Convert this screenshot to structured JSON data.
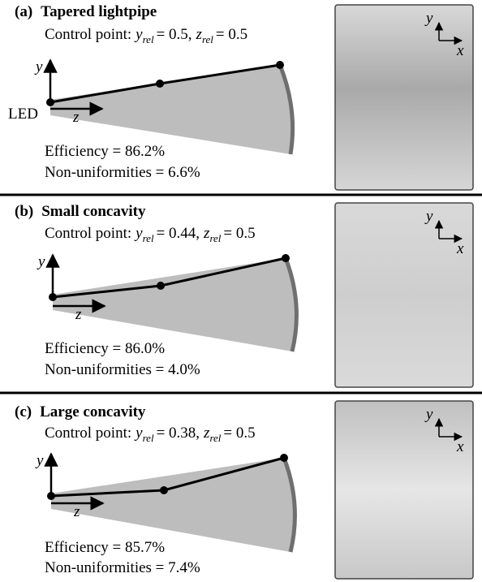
{
  "panels": [
    {
      "label": "(a)",
      "title": "Tapered lightpipe",
      "control_label": "Control point:",
      "y_symbol": "y",
      "y_subscript": "rel",
      "y_value": "= 0.5,",
      "z_symbol": "z",
      "z_subscript": "rel",
      "z_value": "= 0.5",
      "axis_y": "y",
      "axis_z": "z",
      "source_label": "LED",
      "efficiency": "Efficiency = 86.2%",
      "non_uniformities": "Non-uniformities = 6.6%",
      "image_axis_y": "y",
      "image_axis_x": "x"
    },
    {
      "label": "(b)",
      "title": "Small concavity",
      "control_label": "Control point:",
      "y_symbol": "y",
      "y_subscript": "rel",
      "y_value": "= 0.44,",
      "z_symbol": "z",
      "z_subscript": "rel",
      "z_value": "= 0.5",
      "axis_y": "y",
      "axis_z": "z",
      "efficiency": "Efficiency = 86.0%",
      "non_uniformities": "Non-uniformities = 4.0%",
      "image_axis_y": "y",
      "image_axis_x": "x"
    },
    {
      "label": "(c)",
      "title": "Large concavity",
      "control_label": "Control point:",
      "y_symbol": "y",
      "y_subscript": "rel",
      "y_value": "= 0.38,",
      "z_symbol": "z",
      "z_subscript": "rel",
      "z_value": "= 0.5",
      "axis_y": "y",
      "axis_z": "z",
      "efficiency": "Efficiency = 85.7%",
      "non_uniformities": "Non-uniformities = 7.4%",
      "image_axis_y": "y",
      "image_axis_x": "x"
    }
  ]
}
